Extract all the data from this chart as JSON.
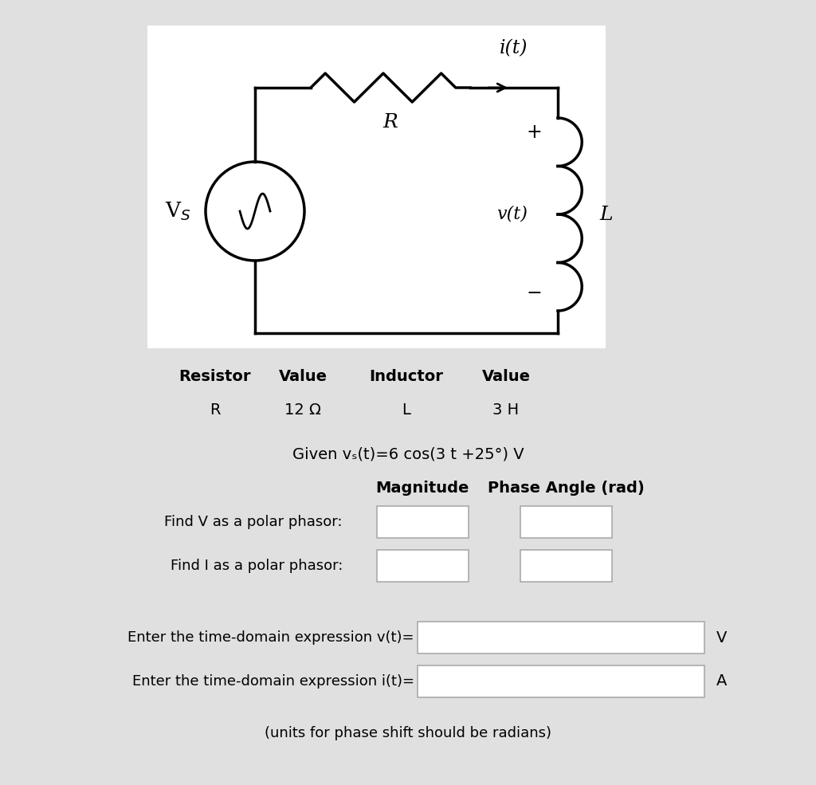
{
  "bg_color": "#e0e0e0",
  "circuit_bg": "#ffffff",
  "table_headers": [
    "Resistor",
    "Value",
    "Inductor",
    "Value"
  ],
  "table_row": [
    "R",
    "12 Ω",
    "L",
    "3 H"
  ],
  "given_text": "Given vₛ(t)=6 cos(3 t +25°) V",
  "col_headers": [
    "Magnitude",
    "Phase Angle (rad)"
  ],
  "row_labels": [
    "Find V as a polar phasor:",
    "Find I as a polar phasor:"
  ],
  "expr_labels": [
    "Enter the time-domain expression v(t)=",
    "Enter the time-domain expression i(t)="
  ],
  "expr_units": [
    "V",
    "A"
  ],
  "note": "(units for phase shift should be radians)"
}
